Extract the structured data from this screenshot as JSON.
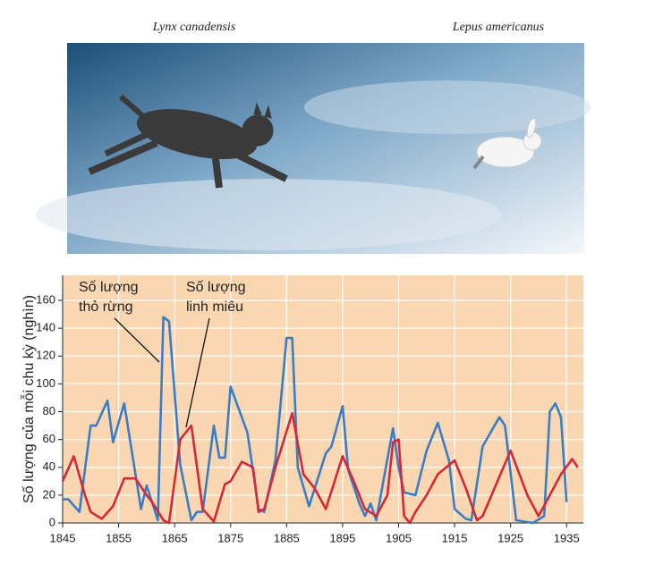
{
  "photo": {
    "captions": [
      "Lynx canadensis",
      "Lepus americanus"
    ]
  },
  "chart_data": {
    "type": "line",
    "y_label": "Số lượng của mỗi chu kỳ (nghìn)",
    "annotations": [
      [
        "Số lượng",
        "thỏ rừng"
      ],
      [
        "Số lượng",
        "linh miêu"
      ]
    ],
    "xlim": [
      1845,
      1938
    ],
    "ylim": [
      0,
      178
    ],
    "xticks": [
      1845,
      1855,
      1865,
      1875,
      1885,
      1895,
      1905,
      1915,
      1925,
      1935
    ],
    "yticks": [
      0,
      20,
      40,
      60,
      80,
      100,
      120,
      140,
      160
    ],
    "grid": true,
    "series": [
      {
        "color": "#3b7dc4",
        "x": [
          1845,
          1846,
          1848,
          1850,
          1851,
          1853,
          1854,
          1856,
          1859,
          1860,
          1862,
          1863,
          1864,
          1866,
          1868,
          1869,
          1870,
          1872,
          1873,
          1874,
          1875,
          1878,
          1880,
          1881,
          1883,
          1885,
          1886,
          1887,
          1889,
          1892,
          1893,
          1895,
          1896,
          1898,
          1899,
          1900,
          1901,
          1904,
          1905,
          1906,
          1908,
          1910,
          1912,
          1914,
          1915,
          1917,
          1918,
          1920,
          1923,
          1924,
          1926,
          1929,
          1931,
          1932,
          1933,
          1934,
          1935
        ],
        "values": [
          17,
          17,
          8,
          70,
          70,
          88,
          58,
          86,
          10,
          27,
          2,
          148,
          145,
          42,
          2,
          8,
          8,
          70,
          47,
          47,
          98,
          65,
          10,
          8,
          45,
          133,
          133,
          40,
          12,
          50,
          55,
          84,
          38,
          14,
          5,
          14,
          2,
          68,
          40,
          22,
          20,
          52,
          72,
          45,
          10,
          3,
          2,
          55,
          76,
          70,
          2,
          0,
          5,
          80,
          86,
          76,
          15
        ]
      },
      {
        "color": "#d62839",
        "x": [
          1845,
          1847,
          1849,
          1850,
          1852,
          1854,
          1856,
          1858,
          1860,
          1861,
          1863,
          1864,
          1866,
          1868,
          1870,
          1872,
          1874,
          1875,
          1877,
          1879,
          1880,
          1881,
          1883,
          1886,
          1888,
          1890,
          1892,
          1895,
          1897,
          1899,
          1901,
          1903,
          1904,
          1905,
          1906,
          1907,
          1908,
          1910,
          1912,
          1915,
          1917,
          1919,
          1920,
          1925,
          1928,
          1930,
          1932,
          1934,
          1936,
          1937
        ],
        "values": [
          30,
          48,
          20,
          8,
          3,
          12,
          32,
          32,
          20,
          15,
          2,
          0,
          60,
          70,
          10,
          1,
          28,
          30,
          44,
          40,
          8,
          10,
          40,
          79,
          35,
          25,
          10,
          48,
          30,
          10,
          5,
          20,
          58,
          60,
          5,
          0,
          8,
          20,
          35,
          45,
          25,
          2,
          5,
          52,
          20,
          5,
          20,
          35,
          46,
          40
        ]
      }
    ]
  }
}
